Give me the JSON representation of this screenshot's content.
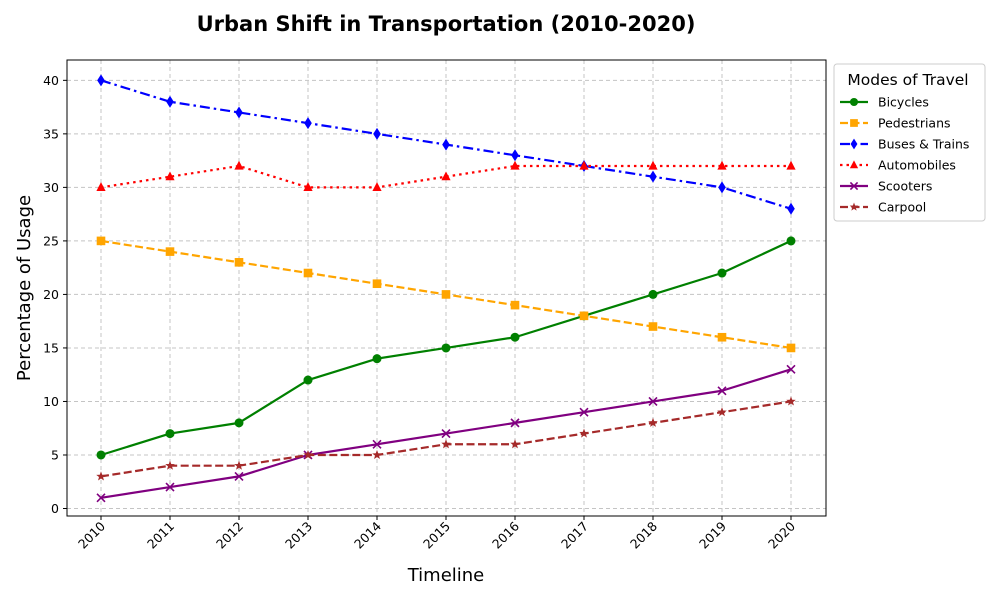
{
  "chart_data": {
    "type": "line",
    "title": "Urban Shift in Transportation (2010-2020)",
    "xlabel": "Timeline",
    "ylabel": "Percentage of Usage",
    "categories": [
      "2010",
      "2011",
      "2012",
      "2013",
      "2014",
      "2015",
      "2016",
      "2017",
      "2018",
      "2019",
      "2020"
    ],
    "ylim": [
      -0.7,
      41.9
    ],
    "yticks": [
      0,
      5,
      10,
      15,
      20,
      25,
      30,
      35,
      40
    ],
    "grid": true,
    "legend": {
      "title": "Modes of Travel",
      "placement": "outside-top-right"
    },
    "series": [
      {
        "name": "Bicycles",
        "values": [
          5,
          7,
          8,
          12,
          14,
          15,
          16,
          18,
          20,
          22,
          25
        ],
        "color": "#008000",
        "dash": "solid",
        "marker": "circle"
      },
      {
        "name": "Pedestrians",
        "values": [
          25,
          24,
          23,
          22,
          21,
          20,
          19,
          18,
          17,
          16,
          15
        ],
        "color": "#FFA500",
        "dash": "dashed",
        "marker": "square"
      },
      {
        "name": "Buses & Trains",
        "values": [
          40,
          38,
          37,
          36,
          35,
          34,
          33,
          32,
          31,
          30,
          28
        ],
        "color": "#0000FF",
        "dash": "dashdot",
        "marker": "diamond"
      },
      {
        "name": "Automobiles",
        "values": [
          30,
          31,
          32,
          30,
          30,
          31,
          32,
          32,
          32,
          32,
          32
        ],
        "color": "#FF0000",
        "dash": "dotted",
        "marker": "triangle"
      },
      {
        "name": "Scooters",
        "values": [
          1,
          2,
          3,
          5,
          6,
          7,
          8,
          9,
          10,
          11,
          13
        ],
        "color": "#800080",
        "dash": "solid",
        "marker": "x"
      },
      {
        "name": "Carpool",
        "values": [
          3,
          4,
          4,
          5,
          5,
          6,
          6,
          7,
          8,
          9,
          10
        ],
        "color": "#A52A2A",
        "dash": "dashed",
        "marker": "star"
      }
    ]
  }
}
